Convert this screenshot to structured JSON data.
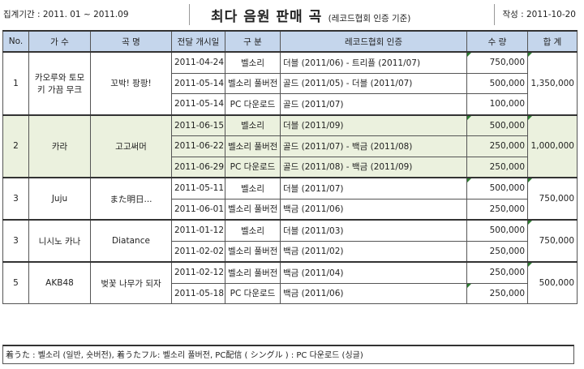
{
  "header": {
    "period": "집계기간 : 2011. 01 ~ 2011.09",
    "title": "최다 음원 판매 곡",
    "subtitle": "(레코드협회 인증 기준)",
    "written": "작성 : 2011-10-20"
  },
  "columns": [
    "No.",
    "가  수",
    "곡  명",
    "전달 개시일",
    "구  분",
    "레코드협회 인증",
    "수  량",
    "합  계"
  ],
  "groups": [
    {
      "no": "1",
      "artist": "카오루와 토모키 가끔 무크",
      "song": "꼬박! 팡팡!",
      "total": "1,350,000",
      "shaded": false,
      "rows": [
        {
          "date": "2011-04-24",
          "type": "벨소리",
          "cert": "더블 (2011/06) - 트리플 (2011/07)",
          "qty": "750,000"
        },
        {
          "date": "2011-05-14",
          "type": "벨소리 풀버전",
          "cert": "골드 (2011/05) - 더블 (2011/07)",
          "qty": "500,000"
        },
        {
          "date": "2011-05-14",
          "type": "PC 다운로드",
          "cert": "골드 (2011/07)",
          "qty": "100,000"
        }
      ]
    },
    {
      "no": "2",
      "artist": "카라",
      "song": "고고써머",
      "total": "1,000,000",
      "shaded": true,
      "rows": [
        {
          "date": "2011-06-15",
          "type": "벨소리",
          "cert": "더블 (2011/09)",
          "qty": "500,000"
        },
        {
          "date": "2011-06-22",
          "type": "벨소리 풀버전",
          "cert": "골드 (2011/07) - 백금 (2011/08)",
          "qty": "250,000"
        },
        {
          "date": "2011-06-29",
          "type": "PC 다운로드",
          "cert": "골드 (2011/08) - 백금 (2011/09)",
          "qty": "250,000"
        }
      ]
    },
    {
      "no": "3",
      "artist": "Juju",
      "song": "また明日...",
      "total": "750,000",
      "shaded": false,
      "rows": [
        {
          "date": "2011-05-11",
          "type": "벨소리",
          "cert": "더블 (2011/07)",
          "qty": "500,000"
        },
        {
          "date": "2011-06-01",
          "type": "벨소리 풀버전",
          "cert": "백금 (2011/06)",
          "qty": "250,000"
        }
      ]
    },
    {
      "no": "3",
      "artist": "니시노 카나",
      "song": "Diatance",
      "total": "750,000",
      "shaded": false,
      "rows": [
        {
          "date": "2011-01-12",
          "type": "벨소리",
          "cert": "더블 (2011/03)",
          "qty": "500,000"
        },
        {
          "date": "2011-02-02",
          "type": "벨소리 풀버전",
          "cert": "백금 (2011/02)",
          "qty": "250,000"
        }
      ]
    },
    {
      "no": "5",
      "artist": "AKB48",
      "song": "벚꽃 나무가 되자",
      "total": "500,000",
      "shaded": false,
      "rows": [
        {
          "date": "2011-02-12",
          "type": "벨소리 풀버전",
          "cert": "백금 (2011/04)",
          "qty": "250,000"
        },
        {
          "date": "2011-05-18",
          "type": "PC 다운로드",
          "cert": "백금 (2011/06)",
          "qty": "250,000"
        }
      ]
    }
  ],
  "footnote": "着うた : 벨소리 (일반, 숏버전), 着うたフル: 벨소리 풀버전, PC配信 ( シングル ) : PC 다운로드 (싱글)",
  "colors": {
    "header_bg": "#c5d6ec",
    "shade_bg": "#ebf1de",
    "marker": "#2e7d32"
  }
}
